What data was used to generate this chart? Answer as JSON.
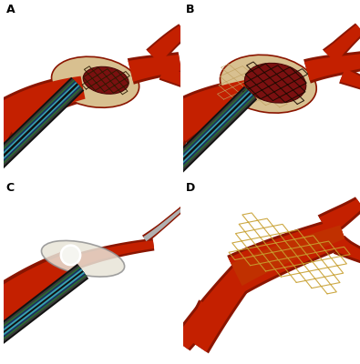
{
  "background_color": "#ffffff",
  "panel_labels": [
    "A",
    "B",
    "C",
    "D"
  ],
  "artery_color": "#c42000",
  "artery_dark": "#8a1500",
  "artery_inner": "#a01800",
  "catheter_outer": "#1a1a1a",
  "catheter_green": "#2d6b30",
  "catheter_blue": "#1a4a7a",
  "catheter_teal": "#38a0b0",
  "plaque_color": "#d8c090",
  "plaque_inner": "#c8a870",
  "thrombus_color": "#7a1010",
  "thrombus_dark": "#4a0808",
  "stent_color": "#2a1a00",
  "stent_gold": "#c8a030",
  "balloon_color": "#e8e0d0",
  "wire_color": "#b0b0b0",
  "wire_dark": "#606060",
  "label_fontsize": 9,
  "label_fontweight": "bold"
}
